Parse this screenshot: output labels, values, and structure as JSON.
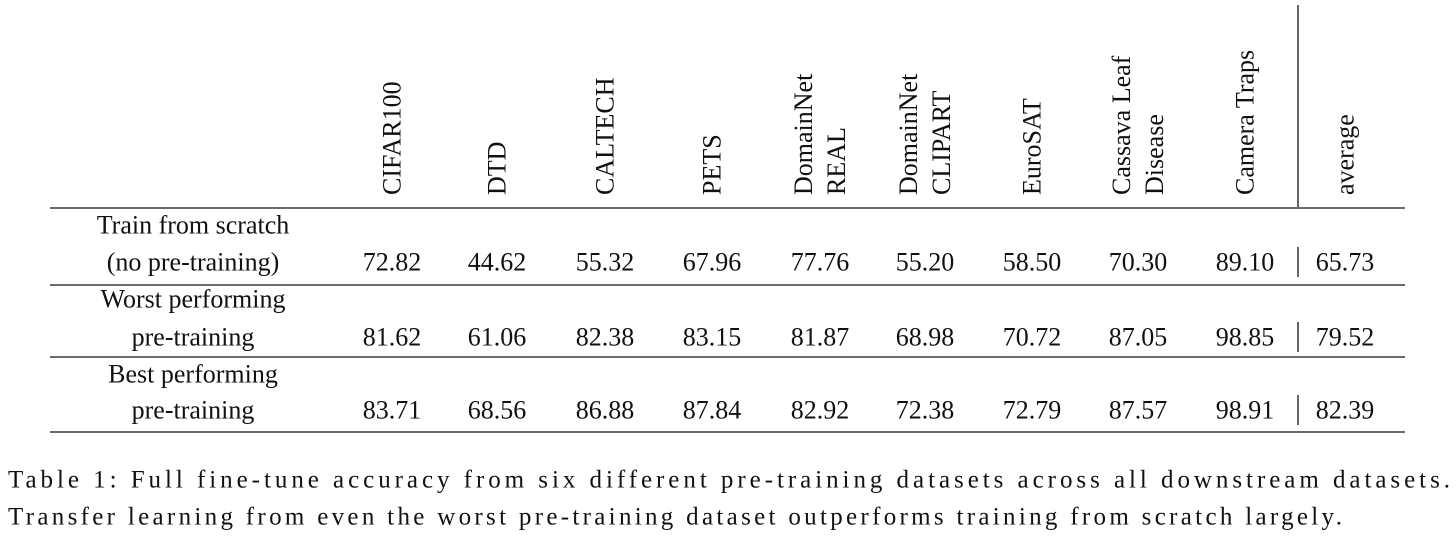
{
  "table": {
    "columns": [
      [
        "CIFAR100"
      ],
      [
        "DTD"
      ],
      [
        "CALTECH"
      ],
      [
        "PETS"
      ],
      [
        "DomainNet",
        "REAL"
      ],
      [
        "DomainNet",
        "CLIPART"
      ],
      [
        "EuroSAT"
      ],
      [
        "Cassava Leaf",
        "Disease"
      ],
      [
        "Camera Traps"
      ],
      [
        "average"
      ]
    ],
    "rows": [
      {
        "label": [
          "Train from scratch",
          "(no pre-training)"
        ],
        "values": [
          "72.82",
          "44.62",
          "55.32",
          "67.96",
          "77.76",
          "55.20",
          "58.50",
          "70.30",
          "89.10",
          "65.73"
        ]
      },
      {
        "label": [
          "Worst performing",
          "pre-training"
        ],
        "values": [
          "81.62",
          "61.06",
          "82.38",
          "83.15",
          "81.87",
          "68.98",
          "70.72",
          "87.05",
          "98.85",
          "79.52"
        ]
      },
      {
        "label": [
          "Best performing",
          "pre-training"
        ],
        "values": [
          "83.71",
          "68.56",
          "86.88",
          "87.84",
          "82.92",
          "72.38",
          "72.79",
          "87.57",
          "98.91",
          "82.39"
        ]
      }
    ]
  },
  "caption": [
    "Table 1: Full fine-tune accuracy from six different pre-training datasets across all downstream datasets.",
    "Transfer learning from even the worst pre-training dataset outperforms training from scratch largely."
  ]
}
